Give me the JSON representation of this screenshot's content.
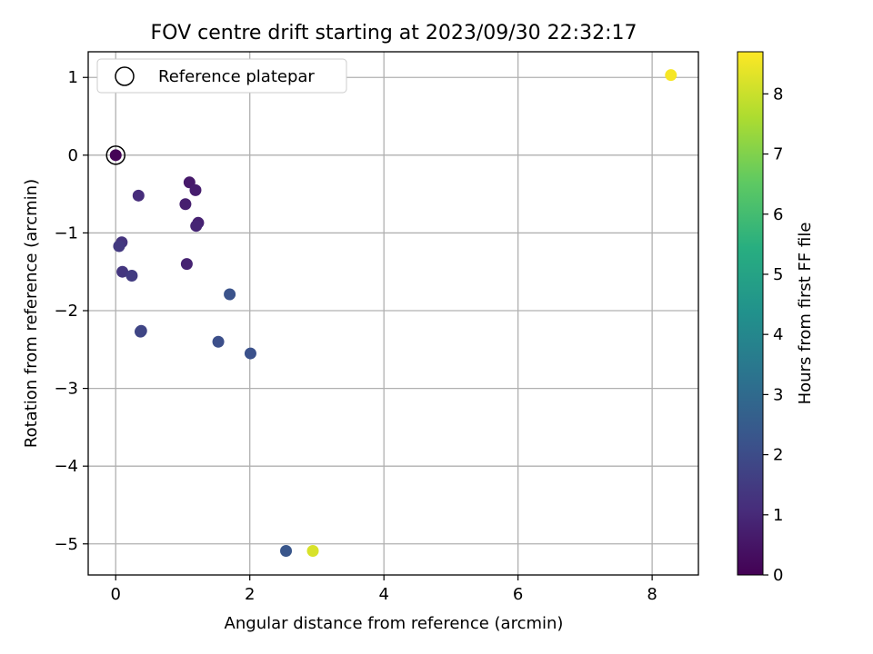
{
  "chart_data": {
    "type": "scatter",
    "title": "FOV centre drift starting at 2023/09/30 22:32:17",
    "xlabel": "Angular distance from reference (arcmin)",
    "ylabel": "Rotation from reference (arcmin)",
    "xlim": [
      -0.41,
      8.69
    ],
    "ylim": [
      -5.4,
      1.33
    ],
    "xticks": [
      {
        "value": 0,
        "label": "0"
      },
      {
        "value": 2,
        "label": "2"
      },
      {
        "value": 4,
        "label": "4"
      },
      {
        "value": 6,
        "label": "6"
      },
      {
        "value": 8,
        "label": "8"
      }
    ],
    "yticks": [
      {
        "value": 1,
        "label": "1"
      },
      {
        "value": 0,
        "label": "0"
      },
      {
        "value": -1,
        "label": "−1"
      },
      {
        "value": -2,
        "label": "−2"
      },
      {
        "value": -3,
        "label": "−3"
      },
      {
        "value": -4,
        "label": "−4"
      },
      {
        "value": -5,
        "label": "−5"
      }
    ],
    "grid": true,
    "colormap": "viridis",
    "colorbar": {
      "label": "Hours from first FF file",
      "range": [
        0,
        8.7
      ],
      "ticks": [
        {
          "value": 0,
          "label": "0"
        },
        {
          "value": 1,
          "label": "1"
        },
        {
          "value": 2,
          "label": "2"
        },
        {
          "value": 3,
          "label": "3"
        },
        {
          "value": 4,
          "label": "4"
        },
        {
          "value": 5,
          "label": "5"
        },
        {
          "value": 6,
          "label": "6"
        },
        {
          "value": 7,
          "label": "7"
        },
        {
          "value": 8,
          "label": "8"
        }
      ]
    },
    "legend": {
      "placement": "upper-left",
      "entries": [
        {
          "label": "Reference platepar",
          "marker": "open-circle"
        }
      ]
    },
    "reference_point": {
      "x": 0.0,
      "y": 0.0
    },
    "points": [
      {
        "x": 0.0,
        "y": 0.0,
        "hours": 0.05
      },
      {
        "x": 1.1,
        "y": -0.35,
        "hours": 0.6
      },
      {
        "x": 1.19,
        "y": -0.45,
        "hours": 0.7
      },
      {
        "x": 1.04,
        "y": -0.63,
        "hours": 0.75
      },
      {
        "x": 0.34,
        "y": -0.52,
        "hours": 1.1
      },
      {
        "x": 1.23,
        "y": -0.87,
        "hours": 0.8
      },
      {
        "x": 1.2,
        "y": -0.91,
        "hours": 0.9
      },
      {
        "x": 0.09,
        "y": -1.12,
        "hours": 1.3
      },
      {
        "x": 0.05,
        "y": -1.17,
        "hours": 1.45
      },
      {
        "x": 1.06,
        "y": -1.4,
        "hours": 0.85
      },
      {
        "x": 0.1,
        "y": -1.5,
        "hours": 1.35
      },
      {
        "x": 0.24,
        "y": -1.55,
        "hours": 1.5
      },
      {
        "x": 0.38,
        "y": -2.26,
        "hours": 1.75
      },
      {
        "x": 0.37,
        "y": -2.27,
        "hours": 1.8
      },
      {
        "x": 1.7,
        "y": -1.79,
        "hours": 2.2
      },
      {
        "x": 1.53,
        "y": -2.4,
        "hours": 2.1
      },
      {
        "x": 2.01,
        "y": -2.55,
        "hours": 2.15
      },
      {
        "x": 2.54,
        "y": -5.09,
        "hours": 2.3
      },
      {
        "x": 2.94,
        "y": -5.09,
        "hours": 8.2
      },
      {
        "x": 8.28,
        "y": 1.03,
        "hours": 8.6
      }
    ]
  }
}
